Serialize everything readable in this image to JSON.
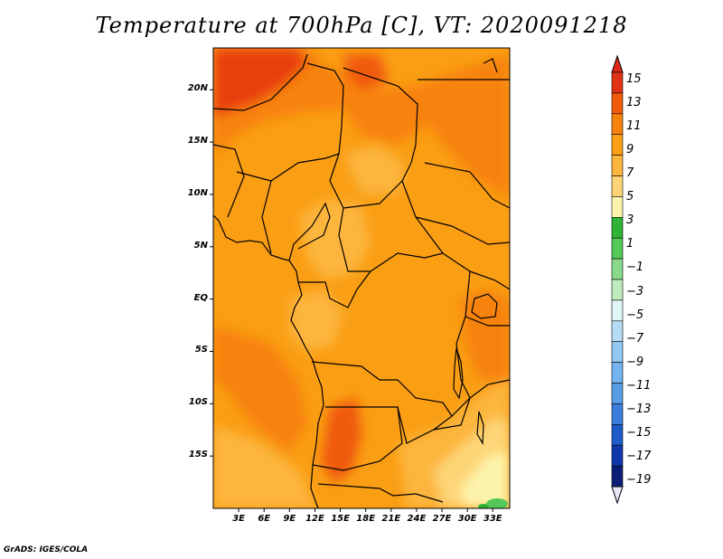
{
  "title": "Temperature at 700hPa [C], VT: 2020091218",
  "credit": "GrADS: IGES/COLA",
  "map": {
    "lon_range": [
      0,
      35
    ],
    "lat_range": [
      -20,
      24
    ],
    "y_ticks": [
      {
        "label": "20N",
        "lat": 20
      },
      {
        "label": "15N",
        "lat": 15
      },
      {
        "label": "10N",
        "lat": 10
      },
      {
        "label": "5N",
        "lat": 5
      },
      {
        "label": "EQ",
        "lat": 0
      },
      {
        "label": "5S",
        "lat": -5
      },
      {
        "label": "10S",
        "lat": -10
      },
      {
        "label": "15S",
        "lat": -15
      }
    ],
    "x_ticks": [
      {
        "label": "3E",
        "lon": 3
      },
      {
        "label": "6E",
        "lon": 6
      },
      {
        "label": "9E",
        "lon": 9
      },
      {
        "label": "12E",
        "lon": 12
      },
      {
        "label": "15E",
        "lon": 15
      },
      {
        "label": "18E",
        "lon": 18
      },
      {
        "label": "21E",
        "lon": 21
      },
      {
        "label": "24E",
        "lon": 24
      },
      {
        "label": "27E",
        "lon": 27
      },
      {
        "label": "30E",
        "lon": 30
      },
      {
        "label": "33E",
        "lon": 33
      }
    ]
  },
  "colorbar": {
    "labels": [
      "15",
      "13",
      "11",
      "9",
      "7",
      "5",
      "3",
      "1",
      "−1",
      "−3",
      "−5",
      "−7",
      "−9",
      "−11",
      "−13",
      "−15",
      "−17",
      "−19"
    ],
    "colors": [
      "#e03314",
      "#f05a0a",
      "#f7820c",
      "#fa9e14",
      "#fcb53c",
      "#fdd577",
      "#fdf4ac",
      "#2eb337",
      "#54c95a",
      "#8ad98a",
      "#bfecbf",
      "#e0f5f5",
      "#b4dcf5",
      "#91c8f2",
      "#73b4f0",
      "#5a9ce6",
      "#3c7ddc",
      "#1e5ac8",
      "#0f37aa",
      "#0a1e78"
    ],
    "top_arrow_color": "#dc2a14",
    "bottom_arrow_color": "#e6e6f8"
  }
}
